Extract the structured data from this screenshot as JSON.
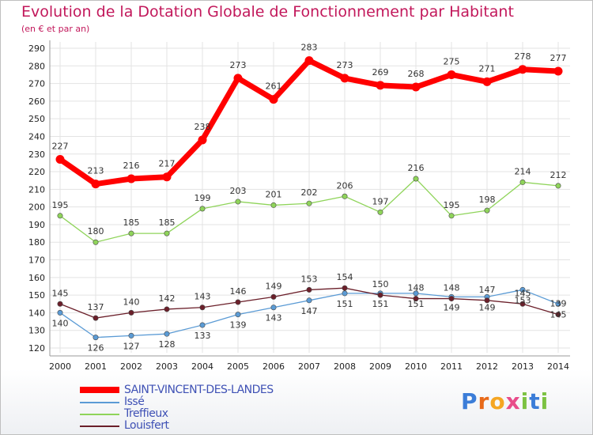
{
  "header": {
    "title": "Evolution de la Dotation Globale de Fonctionnement par Habitant",
    "subtitle": "(en € et par an)"
  },
  "logo": {
    "text": "Proxiti"
  },
  "colors": {
    "series": [
      "#ff0000",
      "#5b9bd5",
      "#8fd45a",
      "#6b1f2a"
    ],
    "grid": "#e3e3e3",
    "title": "#c2185b",
    "legend_text": "#3f51b5"
  },
  "chart_data": {
    "type": "line",
    "title": "Evolution de la Dotation Globale de Fonctionnement par Habitant",
    "subtitle": "(en € et par an)",
    "xlabel": "",
    "ylabel": "",
    "x": [
      "2000",
      "2001",
      "2002",
      "2003",
      "2004",
      "2005",
      "2006",
      "2007",
      "2008",
      "2009",
      "2010",
      "2011",
      "2012",
      "2013",
      "2014"
    ],
    "ylim": [
      120,
      290
    ],
    "yticks": [
      120,
      130,
      140,
      150,
      160,
      170,
      180,
      190,
      200,
      210,
      220,
      230,
      240,
      250,
      260,
      270,
      280,
      290
    ],
    "grid": true,
    "legend_position": "bottom-left",
    "series": [
      {
        "name": "SAINT-VINCENT-DES-LANDES",
        "values": [
          227,
          213,
          216,
          217,
          238,
          273,
          261,
          283,
          273,
          269,
          268,
          275,
          271,
          278,
          277
        ]
      },
      {
        "name": "Issé",
        "values": [
          140,
          126,
          127,
          128,
          133,
          139,
          143,
          147,
          151,
          151,
          151,
          149,
          149,
          153,
          145
        ]
      },
      {
        "name": "Treffieux",
        "values": [
          195,
          180,
          185,
          185,
          199,
          203,
          201,
          202,
          206,
          197,
          216,
          195,
          198,
          214,
          212
        ]
      },
      {
        "name": "Louisfert",
        "values": [
          145,
          137,
          140,
          142,
          143,
          146,
          149,
          153,
          154,
          150,
          148,
          148,
          147,
          145,
          139
        ]
      }
    ]
  }
}
